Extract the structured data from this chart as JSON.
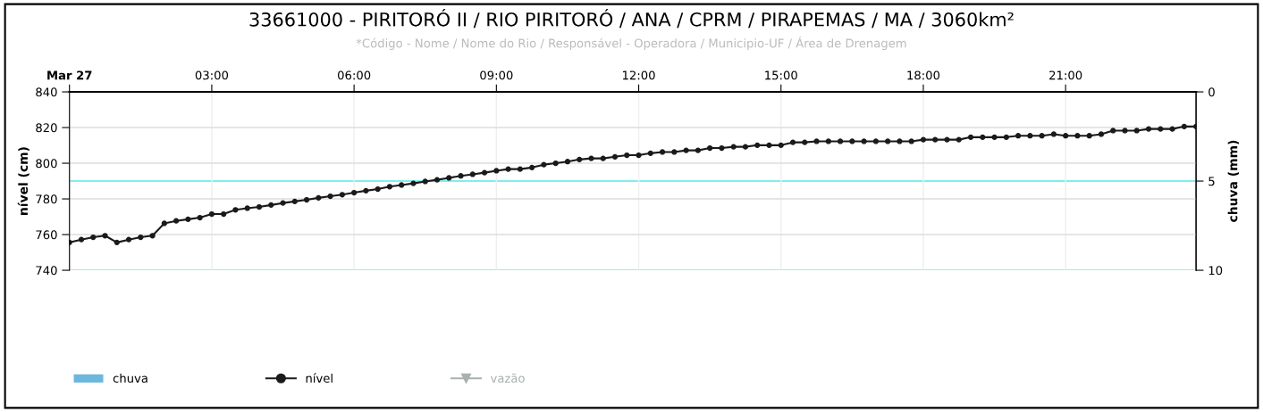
{
  "chart_data": {
    "type": "line",
    "title": "33661000 - PIRITORÓ II / RIO PIRITORÓ / ANA / CPRM / PIRAPEMAS / MA / 3060km²",
    "subtitle": "*Código - Nome / Nome do Rio / Responsável - Operadora / Municipio-UF / Área de Drenagem",
    "ylabel": "nível (cm)",
    "y2label": "chuva (mm)",
    "x": [
      0,
      0.25,
      0.5,
      0.75,
      1,
      1.25,
      1.5,
      1.75,
      2,
      2.25,
      2.5,
      2.75,
      3,
      3.25,
      3.5,
      3.75,
      4,
      4.25,
      4.5,
      4.75,
      5,
      5.25,
      5.5,
      5.75,
      6,
      6.25,
      6.5,
      6.75,
      7,
      7.25,
      7.5,
      7.75,
      8,
      8.25,
      8.5,
      8.75,
      9,
      9.25,
      9.5,
      9.75,
      10,
      10.25,
      10.5,
      10.75,
      11,
      11.25,
      11.5,
      11.75,
      12,
      12.25,
      12.5,
      12.75,
      13,
      13.25,
      13.5,
      13.75,
      14,
      14.25,
      14.5,
      14.75,
      15,
      15.25,
      15.5,
      15.75,
      16,
      16.25,
      16.5,
      16.75,
      17,
      17.25,
      17.5,
      17.75,
      18,
      18.25,
      18.5,
      18.75,
      19,
      19.25,
      19.5,
      19.75,
      20,
      20.25,
      20.5,
      20.75,
      21,
      21.25,
      21.5,
      21.75,
      22,
      22.25,
      22.5,
      22.75,
      23,
      23.25,
      23.5,
      23.75
    ],
    "series": [
      {
        "name": "chuva",
        "type": "bar",
        "color": "#6cb8dc",
        "values": [
          null,
          null,
          null,
          null,
          null,
          null,
          null,
          null,
          null,
          null,
          null,
          null,
          null,
          null,
          null,
          null,
          null,
          null,
          null,
          null,
          null,
          null,
          null,
          null,
          null,
          null,
          null,
          null,
          null,
          null,
          null,
          null,
          null,
          null,
          null,
          null,
          null,
          null,
          null,
          null,
          null,
          null,
          null,
          null,
          null,
          null,
          null,
          null,
          null,
          null,
          null,
          null,
          null,
          null,
          null,
          null,
          null,
          null,
          null,
          null,
          null,
          null,
          null,
          null,
          null,
          null,
          null,
          null,
          null,
          null,
          null,
          null,
          null,
          null,
          null,
          null,
          null,
          null,
          null,
          null,
          null,
          null,
          null,
          null,
          null,
          null,
          null,
          null,
          null,
          null,
          null,
          null,
          null,
          null,
          null,
          null
        ]
      },
      {
        "name": "nível",
        "color": "#1a1a1a",
        "marker": "circle",
        "values": [
          755.6,
          757.2,
          758.5,
          759.4,
          755.6,
          757.2,
          758.5,
          759.4,
          766.3,
          767.7,
          768.6,
          769.5,
          771.5,
          771.5,
          773.9,
          774.8,
          775.5,
          776.6,
          777.7,
          778.6,
          779.5,
          780.6,
          781.5,
          782.4,
          783.5,
          784.6,
          785.5,
          786.9,
          787.8,
          788.7,
          789.8,
          790.7,
          791.8,
          792.9,
          793.8,
          794.7,
          795.8,
          796.7,
          796.7,
          797.6,
          799.2,
          800.0,
          800.9,
          802.1,
          802.7,
          802.7,
          803.6,
          804.5,
          804.5,
          805.6,
          806.3,
          806.3,
          807.2,
          807.2,
          808.5,
          808.5,
          809.2,
          809.2,
          810.1,
          810.1,
          810.1,
          811.7,
          811.7,
          812.3,
          812.3,
          812.3,
          812.3,
          812.3,
          812.3,
          812.3,
          812.3,
          812.3,
          813.2,
          813.2,
          813.2,
          813.2,
          814.6,
          814.6,
          814.6,
          814.6,
          815.4,
          815.4,
          815.4,
          816.3,
          815.4,
          815.4,
          815.4,
          816.3,
          818.3,
          818.3,
          818.3,
          819.2,
          819.2,
          819.2,
          820.6,
          820.6
        ]
      },
      {
        "name": "vazão",
        "type": "line",
        "color": "#a8b0b0",
        "marker": "triangle",
        "values": [
          null,
          null,
          null,
          null,
          null,
          null,
          null,
          null,
          null,
          null,
          null,
          null,
          null,
          null,
          null,
          null,
          null,
          null,
          null,
          null,
          null,
          null,
          null,
          null,
          null,
          null,
          null,
          null,
          null,
          null,
          null,
          null,
          null,
          null,
          null,
          null,
          null,
          null,
          null,
          null,
          null,
          null,
          null,
          null,
          null,
          null,
          null,
          null,
          null,
          null,
          null,
          null,
          null,
          null,
          null,
          null,
          null,
          null,
          null,
          null,
          null,
          null,
          null,
          null,
          null,
          null,
          null,
          null,
          null,
          null,
          null,
          null,
          null,
          null,
          null,
          null,
          null,
          null,
          null,
          null,
          null,
          null,
          null,
          null,
          null,
          null,
          null,
          null,
          null,
          null,
          null,
          null,
          null,
          null,
          null,
          null
        ]
      }
    ],
    "xlim": [
      0,
      23.75
    ],
    "xticks": [
      {
        "value": 0,
        "label": "Mar 27"
      },
      {
        "value": 3,
        "label": "03:00"
      },
      {
        "value": 6,
        "label": "06:00"
      },
      {
        "value": 9,
        "label": "09:00"
      },
      {
        "value": 12,
        "label": "12:00"
      },
      {
        "value": 15,
        "label": "15:00"
      },
      {
        "value": 18,
        "label": "18:00"
      },
      {
        "value": 21,
        "label": "21:00"
      }
    ],
    "ylim": [
      740,
      840
    ],
    "yticks": [
      740,
      760,
      780,
      800,
      820,
      840
    ],
    "y2lim": [
      10,
      0
    ],
    "y2ticks": [
      0,
      5,
      10
    ],
    "ref_lines": [
      {
        "axis": "y2",
        "value": 5,
        "color": "#80eef0"
      },
      {
        "axis": "y2",
        "value": 10,
        "color": "#80eef0"
      }
    ],
    "grid": true,
    "legend": "bottom left"
  }
}
